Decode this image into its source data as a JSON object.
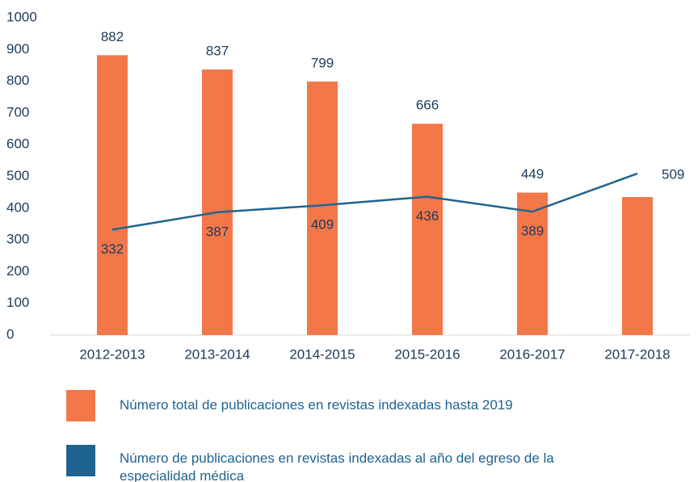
{
  "chart_data": {
    "type": "bar_line",
    "categories": [
      "2012-2013",
      "2013-2014",
      "2014-2015",
      "2015-2016",
      "2016-2017",
      "2017-2018"
    ],
    "series": [
      {
        "name": "Número total de publicaciones en revistas indexadas hasta 2019",
        "type": "bar",
        "color": "#f4774a",
        "values": [
          882,
          837,
          799,
          666,
          449,
          435
        ],
        "value_labels": [
          "882",
          "837",
          "799",
          "666",
          "449",
          null
        ]
      },
      {
        "name": "Número de publicaciones en revistas indexadas al año del egreso de la especialidad médica",
        "type": "line",
        "color": "#1f6391",
        "values": [
          332,
          387,
          409,
          436,
          389,
          509
        ]
      }
    ],
    "ylim": [
      0,
      1000
    ],
    "yticks": [
      0,
      100,
      200,
      300,
      400,
      500,
      600,
      700,
      800,
      900,
      1000
    ],
    "grid": false
  }
}
